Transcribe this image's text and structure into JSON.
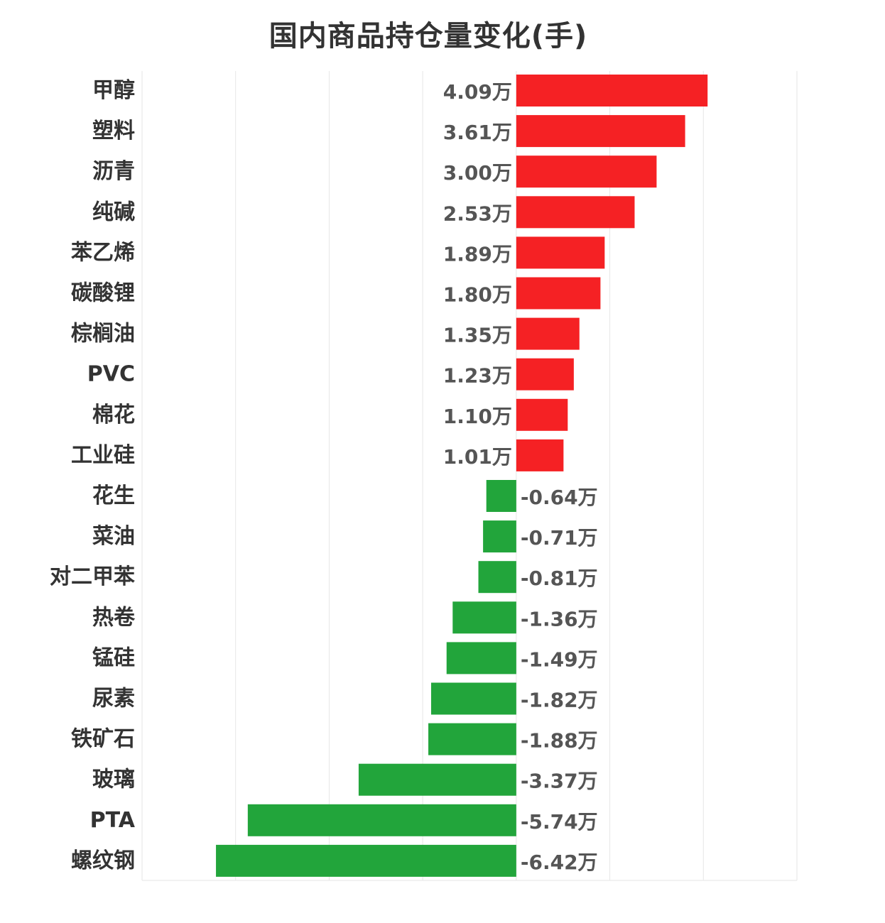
{
  "chart_data": {
    "type": "bar",
    "orientation": "horizontal",
    "title": "国内商品持仓量变化(手)",
    "unit_suffix": "万",
    "categories": [
      "甲醇",
      "塑料",
      "沥青",
      "纯碱",
      "苯乙烯",
      "碳酸锂",
      "棕榈油",
      "PVC",
      "棉花",
      "工业硅",
      "花生",
      "菜油",
      "对二甲苯",
      "热卷",
      "锰硅",
      "尿素",
      "铁矿石",
      "玻璃",
      "PTA",
      "螺纹钢"
    ],
    "values": [
      4.09,
      3.61,
      3.0,
      2.53,
      1.89,
      1.8,
      1.35,
      1.23,
      1.1,
      1.01,
      -0.64,
      -0.71,
      -0.81,
      -1.36,
      -1.49,
      -1.82,
      -1.88,
      -3.37,
      -5.74,
      -6.42
    ],
    "value_labels": [
      "4.09万",
      "3.61万",
      "3.00万",
      "2.53万",
      "1.89万",
      "1.80万",
      "1.35万",
      "1.23万",
      "1.10万",
      "1.01万",
      "-0.64万",
      "-0.71万",
      "-0.81万",
      "-1.36万",
      "-1.49万",
      "-1.82万",
      "-1.88万",
      "-3.37万",
      "-5.74万",
      "-6.42万"
    ],
    "xlim": [
      -8,
      6
    ],
    "grid": true,
    "colors": {
      "positive": "#F52124",
      "negative": "#22A53B",
      "label": "#333333",
      "value_label": "#555555",
      "grid": "#e6e6e6"
    }
  }
}
